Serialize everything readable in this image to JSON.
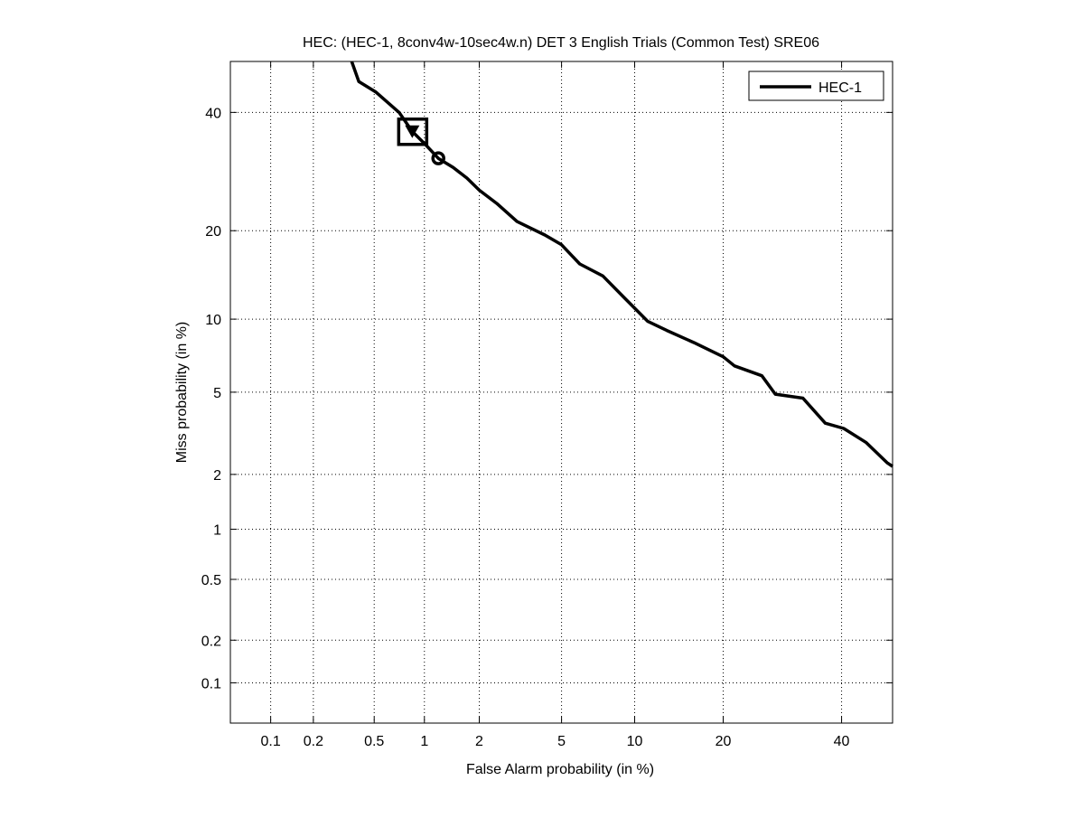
{
  "chart_data": {
    "type": "line",
    "title": "HEC: (HEC-1, 8conv4w-10sec4w.n) DET 3 English Trials (Common Test) SRE06",
    "xlabel": "False Alarm probability (in %)",
    "ylabel": "Miss probability (in %)",
    "x_scale": "normal-deviate (probit)",
    "y_scale": "normal-deviate (probit)",
    "xlim": [
      0.05,
      50
    ],
    "ylim": [
      0.05,
      50
    ],
    "x_ticks": [
      0.1,
      0.2,
      0.5,
      1,
      2,
      5,
      10,
      20,
      40
    ],
    "x_tick_labels": [
      "0.1",
      "0.2",
      "0.5",
      "1",
      "2",
      "5",
      "10",
      "20",
      "40"
    ],
    "y_ticks": [
      0.1,
      0.2,
      0.5,
      1,
      2,
      5,
      10,
      20,
      40
    ],
    "y_tick_labels": [
      "0.1",
      "0.2",
      "0.5",
      "1",
      "2",
      "5",
      "10",
      "20",
      "40"
    ],
    "grid": true,
    "legend_placement": "top-right",
    "series": [
      {
        "name": "HEC-1",
        "color": "#000000",
        "x": [
          0.36,
          0.4,
          0.51,
          0.71,
          0.85,
          1.02,
          1.2,
          1.45,
          1.72,
          2.0,
          2.46,
          3.1,
          4.2,
          5.0,
          6.0,
          7.5,
          9.2,
          11.2,
          13.1,
          16.2,
          20,
          21.6,
          25.8,
          28,
          32.8,
          36.9,
          40.4,
          44.8,
          48.9,
          50
        ],
        "y": [
          50,
          46,
          44,
          40,
          36.4,
          33.9,
          31.5,
          29.9,
          28.1,
          26.1,
          24,
          21.3,
          19.4,
          18.1,
          15.7,
          14.3,
          11.9,
          9.8,
          9.05,
          8.1,
          7.1,
          6.5,
          5.9,
          4.9,
          4.7,
          3.6,
          3.4,
          2.9,
          2.3,
          2.2
        ]
      }
    ],
    "markers": [
      {
        "shape": "square-box",
        "x": 0.85,
        "y": 36.5
      },
      {
        "shape": "triangle-down",
        "x": 0.85,
        "y": 36.5
      },
      {
        "shape": "circle",
        "x": 1.2,
        "y": 31.5
      }
    ]
  }
}
